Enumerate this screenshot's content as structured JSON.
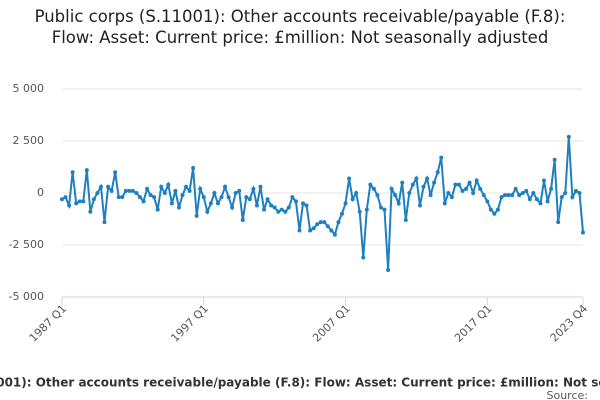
{
  "chart_data": {
    "type": "line",
    "title": "Public corps (S.11001): Other accounts receivable/payable (F.8): Flow: Asset: Current price: £million: Not seasonally adjusted",
    "source": "Source:",
    "categories": [
      "1987 Q1",
      null,
      null,
      null,
      null,
      null,
      null,
      null,
      null,
      null,
      null,
      null,
      null,
      null,
      null,
      null,
      null,
      null,
      null,
      null,
      null,
      null,
      null,
      null,
      null,
      null,
      null,
      null,
      null,
      null,
      null,
      null,
      null,
      null,
      null,
      null,
      null,
      null,
      null,
      null,
      "1997 Q1",
      null,
      null,
      null,
      null,
      null,
      null,
      null,
      null,
      null,
      null,
      null,
      null,
      null,
      null,
      null,
      null,
      null,
      null,
      null,
      null,
      null,
      null,
      null,
      null,
      null,
      null,
      null,
      null,
      null,
      null,
      null,
      null,
      null,
      null,
      null,
      null,
      null,
      null,
      null,
      "2007 Q1",
      null,
      null,
      null,
      null,
      null,
      null,
      null,
      null,
      null,
      null,
      null,
      null,
      null,
      null,
      null,
      null,
      null,
      null,
      null,
      null,
      null,
      null,
      null,
      null,
      null,
      null,
      null,
      null,
      null,
      null,
      null,
      null,
      null,
      null,
      null,
      null,
      null,
      null,
      null,
      "2017 Q1",
      null,
      null,
      null,
      null,
      null,
      null,
      null,
      null,
      null,
      null,
      null,
      null,
      null,
      null,
      null,
      null,
      null,
      null,
      null,
      null,
      null,
      null,
      null,
      null,
      null,
      null,
      "2023 Q4"
    ],
    "series": [
      {
        "name": "Public corps (S.11001): Other accounts receivable/payable (F.8): Flow: Asset: Current price: £million: Not seasonally adjusted",
        "color": "#1f7fc0",
        "values": [
          -300,
          -200,
          -600,
          1000,
          -500,
          -400,
          -400,
          1100,
          -900,
          -300,
          0,
          300,
          -1400,
          300,
          100,
          1000,
          -200,
          -200,
          100,
          100,
          100,
          0,
          -200,
          -400,
          200,
          -100,
          -200,
          -800,
          300,
          0,
          400,
          -500,
          100,
          -700,
          -100,
          300,
          100,
          1200,
          -1100,
          200,
          -200,
          -900,
          -500,
          0,
          -500,
          -200,
          300,
          -200,
          -700,
          0,
          100,
          -1300,
          -200,
          -300,
          200,
          -600,
          300,
          -800,
          -300,
          -600,
          -700,
          -900,
          -800,
          -900,
          -700,
          -200,
          -400,
          -1800,
          -500,
          -600,
          -1800,
          -1700,
          -1500,
          -1400,
          -1400,
          -1600,
          -1800,
          -2000,
          -1400,
          -1000,
          -500,
          700,
          -300,
          0,
          -900,
          -3100,
          -800,
          400,
          200,
          -100,
          -700,
          -800,
          -3700,
          200,
          -100,
          -500,
          500,
          -1300,
          0,
          400,
          700,
          -600,
          300,
          700,
          -100,
          500,
          1000,
          1700,
          -500,
          0,
          -200,
          400,
          400,
          100,
          200,
          500,
          0,
          600,
          200,
          -100,
          -400,
          -800,
          -1000,
          -800,
          -200,
          -100,
          -100,
          -100,
          200,
          -100,
          0,
          100,
          -300,
          0,
          -300,
          -500,
          600,
          -400,
          200,
          1600,
          -1400,
          -200,
          0,
          2700,
          -200,
          100,
          0,
          -1900
        ]
      }
    ],
    "ylim": [
      -5000,
      5000
    ],
    "yticks": [
      {
        "value": -5000,
        "label": "-5 000"
      },
      {
        "value": -2500,
        "label": "-2 500"
      },
      0,
      {
        "value": 2500,
        "label": "2 500"
      },
      {
        "value": 5000,
        "label": "5 000"
      }
    ],
    "grid": true
  }
}
